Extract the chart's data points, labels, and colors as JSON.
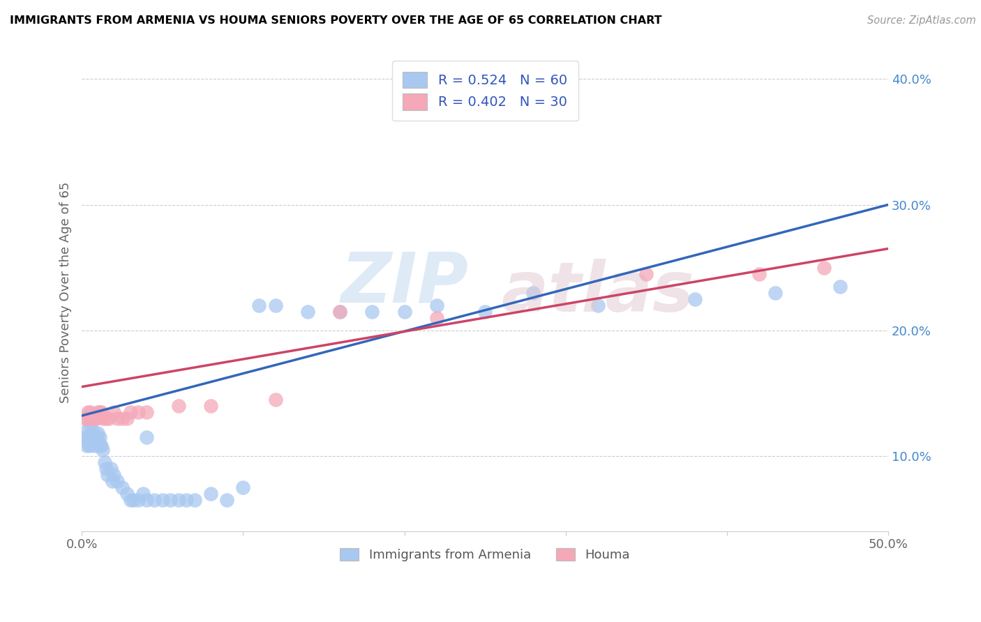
{
  "title": "IMMIGRANTS FROM ARMENIA VS HOUMA SENIORS POVERTY OVER THE AGE OF 65 CORRELATION CHART",
  "source": "Source: ZipAtlas.com",
  "ylabel": "Seniors Poverty Over the Age of 65",
  "xmin": 0.0,
  "xmax": 0.5,
  "ymin": 0.04,
  "ymax": 0.42,
  "x_ticks": [
    0.0,
    0.1,
    0.2,
    0.3,
    0.4,
    0.5
  ],
  "x_tick_labels": [
    "0.0%",
    "",
    "",
    "",
    "",
    "50.0%"
  ],
  "y_ticks_right": [
    0.1,
    0.2,
    0.3,
    0.4
  ],
  "y_tick_labels_right": [
    "10.0%",
    "20.0%",
    "30.0%",
    "40.0%"
  ],
  "r_blue": 0.524,
  "n_blue": 60,
  "r_pink": 0.402,
  "n_pink": 30,
  "blue_color": "#a8c8f0",
  "pink_color": "#f4a8b8",
  "blue_line_color": "#3366bb",
  "pink_line_color": "#cc4466",
  "blue_scatter_x": [
    0.002,
    0.003,
    0.003,
    0.004,
    0.004,
    0.005,
    0.005,
    0.005,
    0.006,
    0.006,
    0.006,
    0.007,
    0.007,
    0.008,
    0.008,
    0.009,
    0.009,
    0.01,
    0.01,
    0.011,
    0.011,
    0.012,
    0.013,
    0.014,
    0.015,
    0.016,
    0.018,
    0.019,
    0.02,
    0.022,
    0.025,
    0.028,
    0.03,
    0.032,
    0.035,
    0.038,
    0.04,
    0.04,
    0.045,
    0.05,
    0.055,
    0.06,
    0.065,
    0.07,
    0.08,
    0.09,
    0.1,
    0.11,
    0.12,
    0.14,
    0.16,
    0.18,
    0.2,
    0.22,
    0.25,
    0.28,
    0.32,
    0.38,
    0.43,
    0.47
  ],
  "blue_scatter_y": [
    0.115,
    0.12,
    0.108,
    0.115,
    0.11,
    0.125,
    0.108,
    0.115,
    0.115,
    0.11,
    0.115,
    0.12,
    0.115,
    0.115,
    0.108,
    0.115,
    0.11,
    0.115,
    0.118,
    0.115,
    0.108,
    0.108,
    0.105,
    0.095,
    0.09,
    0.085,
    0.09,
    0.08,
    0.085,
    0.08,
    0.075,
    0.07,
    0.065,
    0.065,
    0.065,
    0.07,
    0.065,
    0.115,
    0.065,
    0.065,
    0.065,
    0.065,
    0.065,
    0.065,
    0.07,
    0.065,
    0.075,
    0.22,
    0.22,
    0.215,
    0.215,
    0.215,
    0.215,
    0.22,
    0.215,
    0.23,
    0.22,
    0.225,
    0.23,
    0.235
  ],
  "pink_scatter_x": [
    0.002,
    0.003,
    0.004,
    0.005,
    0.005,
    0.006,
    0.007,
    0.008,
    0.009,
    0.01,
    0.011,
    0.012,
    0.013,
    0.015,
    0.017,
    0.02,
    0.022,
    0.025,
    0.028,
    0.03,
    0.035,
    0.04,
    0.06,
    0.08,
    0.12,
    0.16,
    0.22,
    0.35,
    0.42,
    0.46
  ],
  "pink_scatter_y": [
    0.13,
    0.13,
    0.135,
    0.135,
    0.13,
    0.13,
    0.13,
    0.13,
    0.13,
    0.135,
    0.135,
    0.135,
    0.13,
    0.13,
    0.13,
    0.135,
    0.13,
    0.13,
    0.13,
    0.135,
    0.135,
    0.135,
    0.14,
    0.14,
    0.145,
    0.215,
    0.21,
    0.245,
    0.245,
    0.25
  ],
  "blue_line_x0": 0.0,
  "blue_line_y0": 0.132,
  "blue_line_x1": 0.5,
  "blue_line_y1": 0.3,
  "pink_line_x0": 0.0,
  "pink_line_y0": 0.155,
  "pink_line_x1": 0.5,
  "pink_line_y1": 0.265
}
